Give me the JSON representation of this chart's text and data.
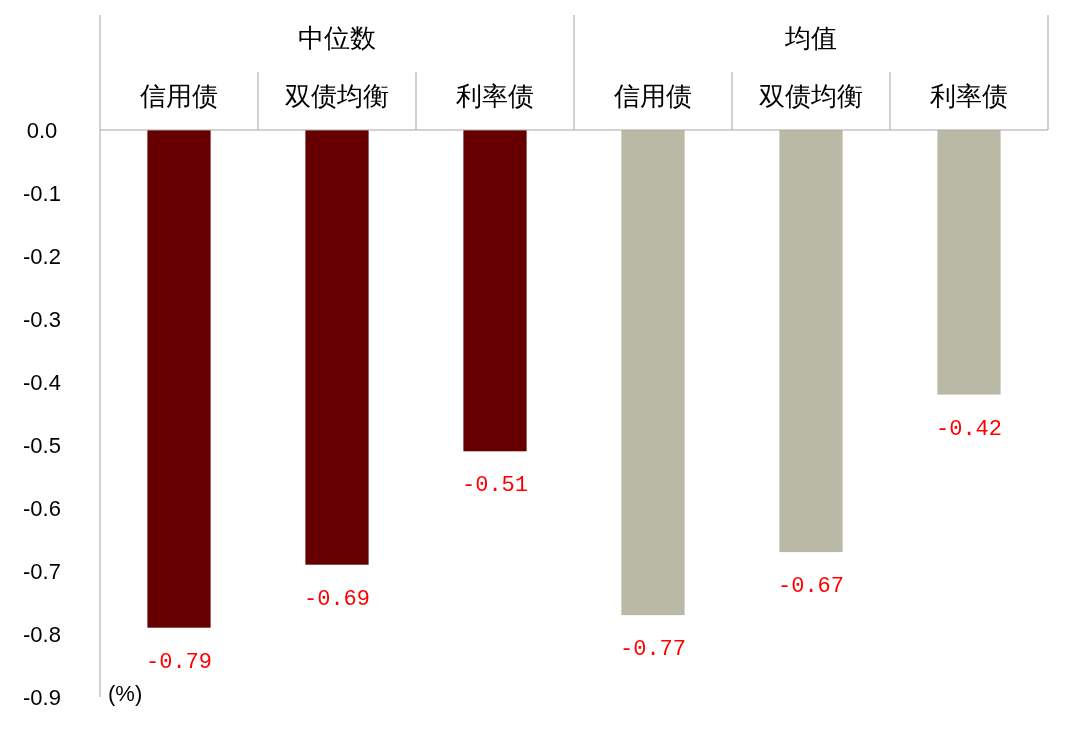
{
  "chart_data": {
    "type": "bar",
    "ylabel": "(%)",
    "categories": [
      "信用债",
      "双债均衡",
      "利率债",
      "信用债",
      "双债均衡",
      "利率债"
    ],
    "series": [
      {
        "name": "中位数",
        "color": "#660000",
        "values": [
          -0.79,
          -0.69,
          -0.51,
          null,
          null,
          null
        ]
      },
      {
        "name": "均值",
        "color": "#bab9a5",
        "values": [
          null,
          null,
          null,
          -0.77,
          -0.67,
          -0.42
        ]
      }
    ],
    "ylim": [
      -0.9,
      0
    ],
    "yticks": [
      {
        "value": 0,
        "label": "0.0"
      },
      -0.1,
      -0.2,
      -0.3,
      -0.4,
      -0.5,
      -0.6,
      -0.7,
      -0.8,
      -0.9
    ],
    "data_labels": true
  }
}
